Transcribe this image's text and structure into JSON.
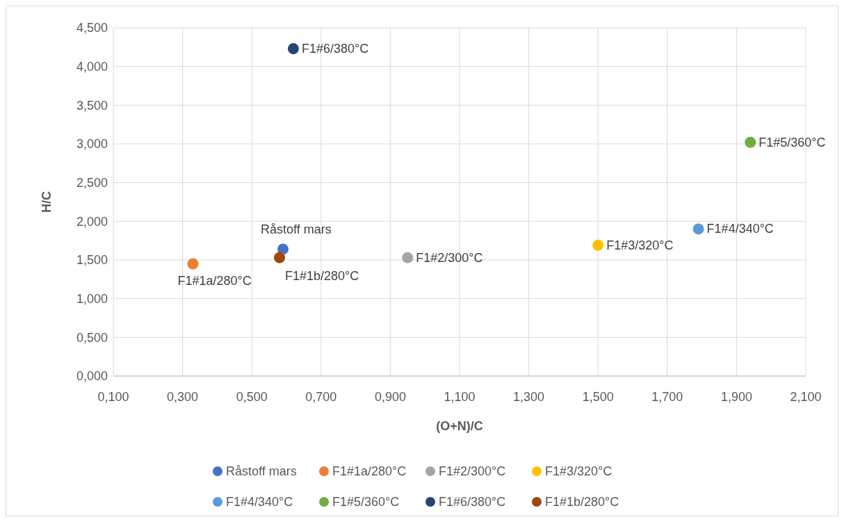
{
  "chart_data": {
    "type": "scatter",
    "xlabel": "(O+N)/C",
    "ylabel": "H/C",
    "xlim": [
      0.1,
      2.1
    ],
    "xticks": [
      {
        "value": 0.1,
        "label": "0,100"
      },
      {
        "value": 0.3,
        "label": "0,300"
      },
      {
        "value": 0.5,
        "label": "0,500"
      },
      {
        "value": 0.7,
        "label": "0,700"
      },
      {
        "value": 0.9,
        "label": "0,900"
      },
      {
        "value": 1.1,
        "label": "1,100"
      },
      {
        "value": 1.3,
        "label": "1,300"
      },
      {
        "value": 1.5,
        "label": "1,500"
      },
      {
        "value": 1.7,
        "label": "1,700"
      },
      {
        "value": 1.9,
        "label": "1,900"
      },
      {
        "value": 2.1,
        "label": "2,100"
      }
    ],
    "ylim": [
      0,
      4.5
    ],
    "yticks": [
      {
        "value": 0,
        "label": "0,000"
      },
      {
        "value": 0.5,
        "label": "0,500"
      },
      {
        "value": 1,
        "label": "1,000"
      },
      {
        "value": 1.5,
        "label": "1,500"
      },
      {
        "value": 2,
        "label": "2,000"
      },
      {
        "value": 2.5,
        "label": "2,500"
      },
      {
        "value": 3,
        "label": "3,000"
      },
      {
        "value": 3.5,
        "label": "3,500"
      },
      {
        "value": 4,
        "label": "4,000"
      },
      {
        "value": 4.5,
        "label": "4,500"
      }
    ],
    "grid": true,
    "legend": "bottom",
    "marker": "circle",
    "series": [
      {
        "name": "Råstoff mars",
        "color": "#4472c4",
        "x": [
          0.59
        ],
        "values": [
          1.64
        ]
      },
      {
        "name": "F1#1a/280°C",
        "color": "#ed7d31",
        "x": [
          0.33
        ],
        "values": [
          1.45
        ]
      },
      {
        "name": "F1#2/300°C",
        "color": "#a5a5a5",
        "x": [
          0.95
        ],
        "values": [
          1.53
        ]
      },
      {
        "name": "F1#3/320°C",
        "color": "#ffc000",
        "x": [
          1.5
        ],
        "values": [
          1.69
        ]
      },
      {
        "name": "F1#4/340°C",
        "color": "#5b9bd5",
        "x": [
          1.79
        ],
        "values": [
          1.9
        ]
      },
      {
        "name": "F1#5/360°C",
        "color": "#70ad47",
        "x": [
          1.94
        ],
        "values": [
          3.02
        ]
      },
      {
        "name": "F1#6/380°C",
        "color": "#264478",
        "x": [
          0.62
        ],
        "values": [
          4.23
        ]
      },
      {
        "name": "F1#1b/280°C",
        "color": "#9e480e",
        "x": [
          0.58
        ],
        "values": [
          1.53
        ]
      }
    ]
  }
}
